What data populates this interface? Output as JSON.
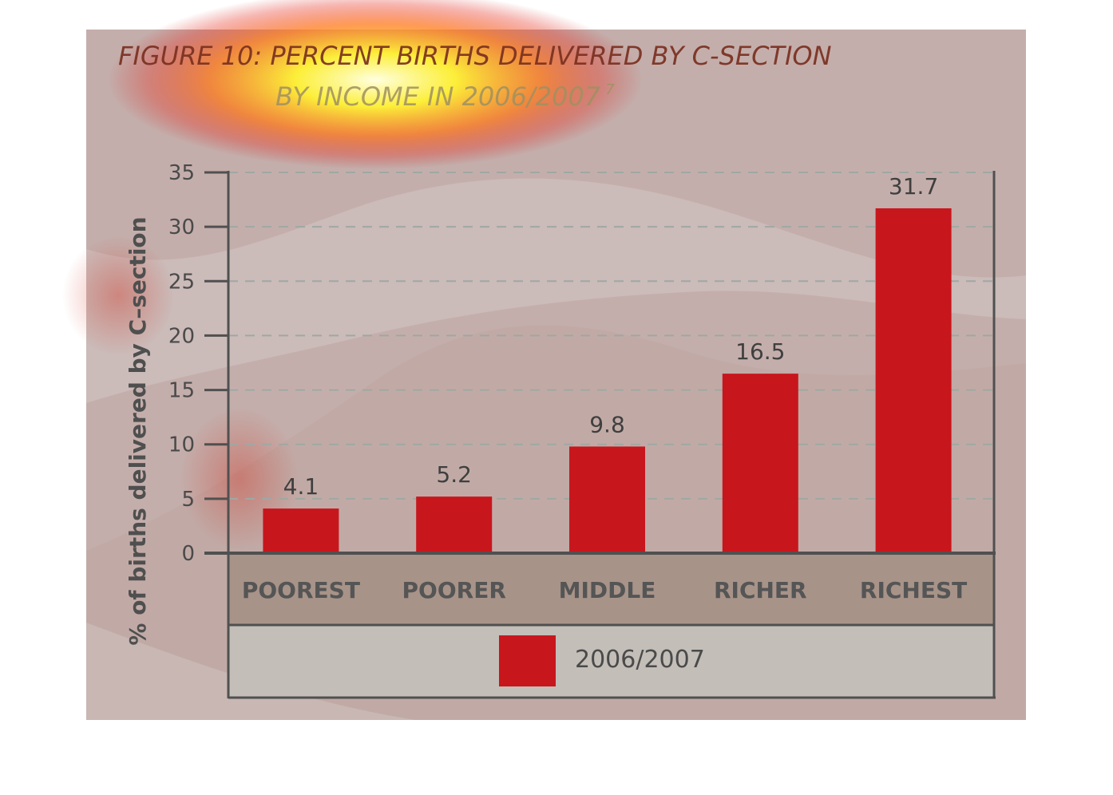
{
  "chart_data": {
    "type": "bar",
    "title_line1": "FIGURE 10: PERCENT BIRTHS DELIVERED BY C-SECTION",
    "title_line2": "BY INCOME IN 2006/2007",
    "title_superscript": "7",
    "ylabel": "% of births delivered by C–section",
    "categories": [
      "POOREST",
      "POORER",
      "MIDDLE",
      "RICHER",
      "RICHEST"
    ],
    "series": [
      {
        "name": "2006/2007",
        "values": [
          4.1,
          5.2,
          9.8,
          16.5,
          31.7
        ]
      }
    ],
    "data_labels": [
      "4.1",
      "5.2",
      "9.8",
      "16.5",
      "31.7"
    ],
    "ylim": [
      0,
      35
    ],
    "yticks": [
      "0",
      "5",
      "10",
      "15",
      "20",
      "25",
      "30",
      "35"
    ],
    "grid": true,
    "legend_position": "bottom",
    "colors": {
      "bar": "#c8161d",
      "title": "#7a3020",
      "background": "#c4aeab",
      "category_band": "#a89389",
      "legend_band": "#c3beb8",
      "axis": "#505050"
    }
  }
}
